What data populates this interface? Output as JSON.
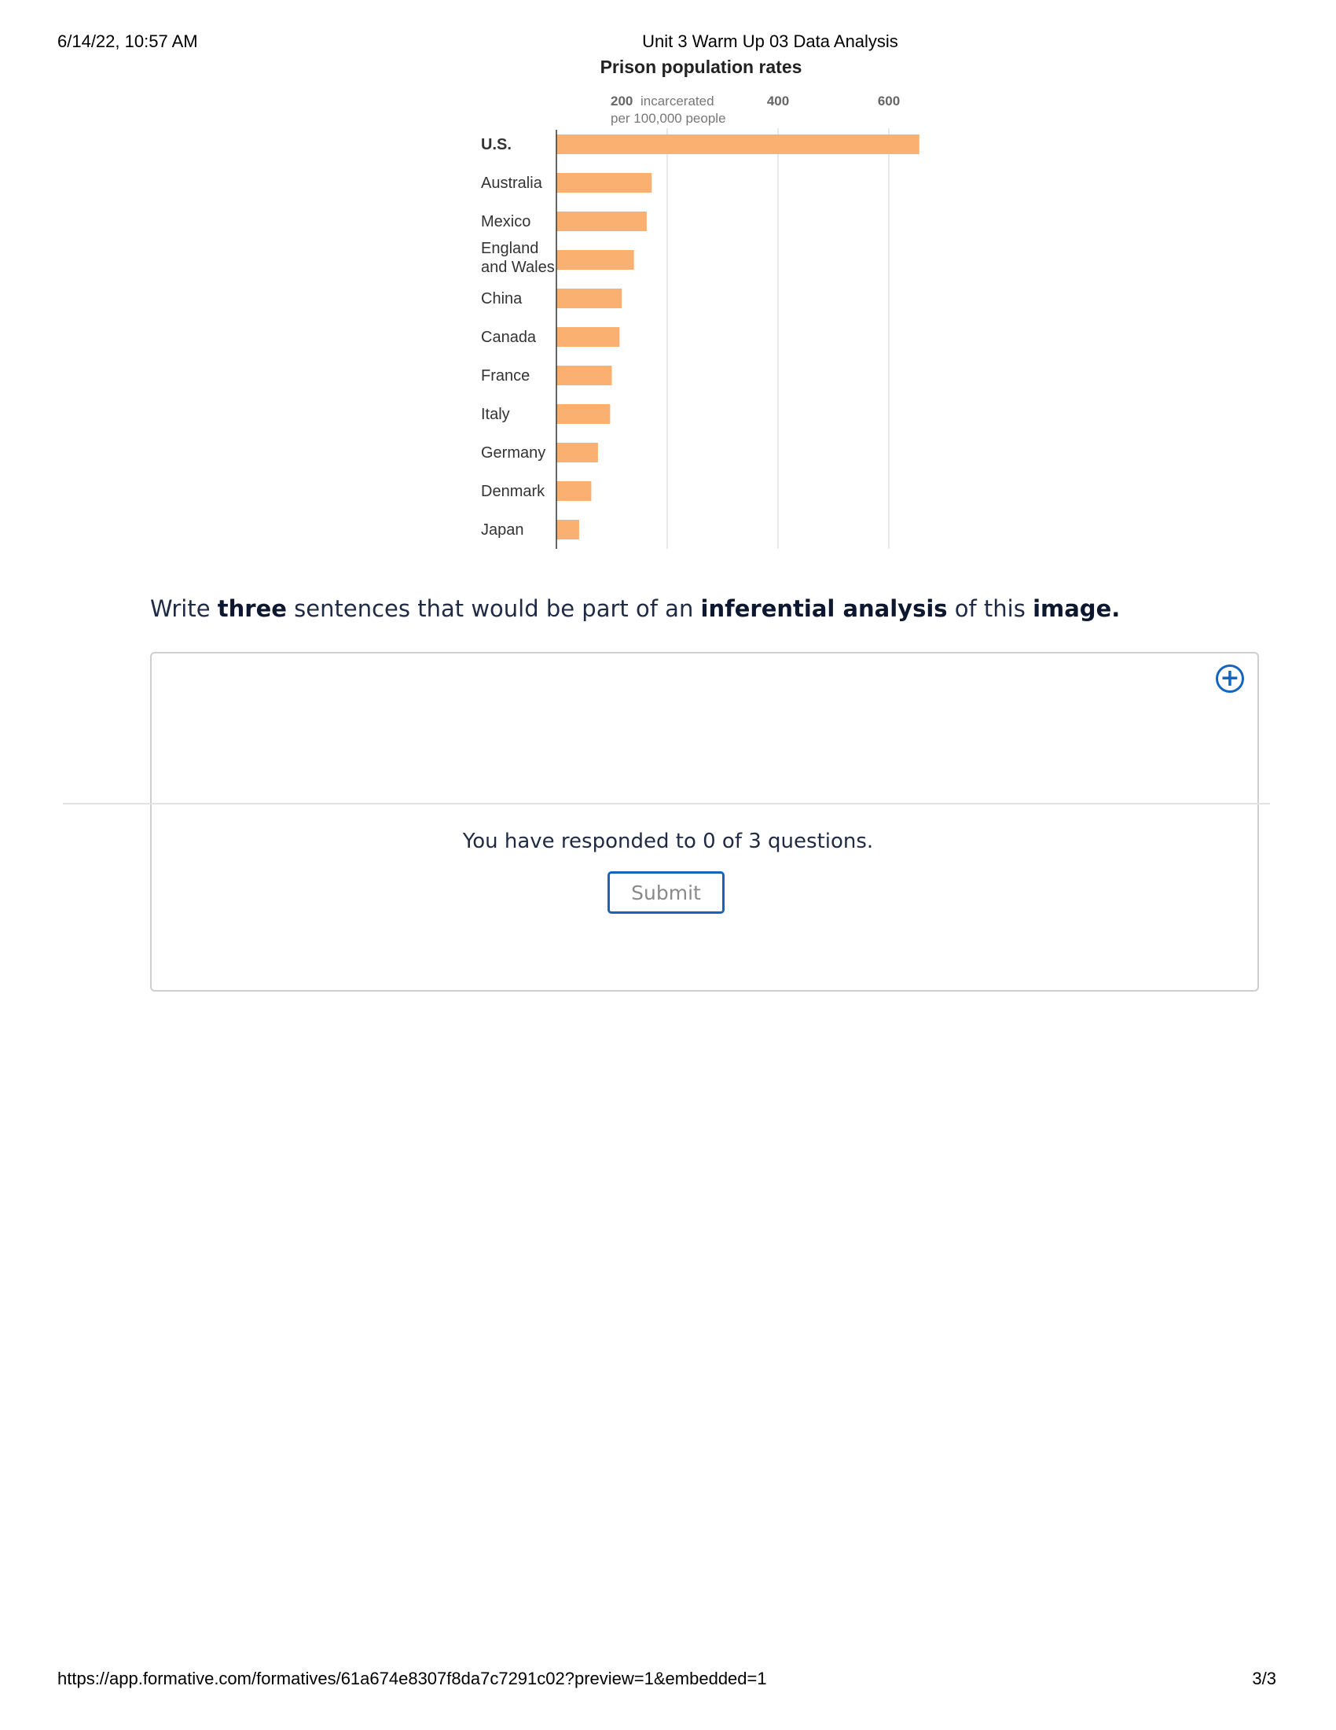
{
  "print_header": {
    "datetime": "6/14/22, 10:57 AM",
    "title": "Unit 3 Warm Up 03 Data Analysis"
  },
  "print_footer": {
    "url": "https://app.formative.com/formatives/61a674e8307f8da7c7291c02?preview=1&embedded=1",
    "page": "3/3"
  },
  "chart_data": {
    "type": "bar",
    "orientation": "horizontal",
    "title": "Prison population rates",
    "tick_labels": [
      "200",
      "400",
      "600"
    ],
    "tick_values": [
      200,
      400,
      600
    ],
    "tick_unit_line1": "incarcerated",
    "tick_unit_line2": "per 100,000 people",
    "categories": [
      "U.S.",
      "Australia",
      "Mexico",
      "England and Wales",
      "China",
      "Canada",
      "France",
      "Italy",
      "Germany",
      "Denmark",
      "Japan"
    ],
    "values": [
      655,
      172,
      163,
      140,
      118,
      114,
      100,
      97,
      75,
      63,
      41
    ],
    "xlim": [
      0,
      700
    ],
    "bar_color": "#f9b071",
    "grid": true
  },
  "question": {
    "prefix": "Write ",
    "bold1": "three",
    "middle1": " sentences that would be part of an ",
    "bold2": "inferential analysis",
    "middle2": " of this ",
    "bold3": "image."
  },
  "response": {
    "status_text": "You have responded to 0 of 3 questions.",
    "submit_label": "Submit",
    "add_icon": "plus-circle-icon",
    "accent_color": "#1565c0"
  }
}
